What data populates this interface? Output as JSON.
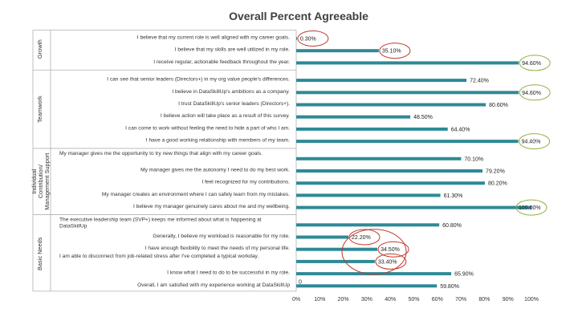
{
  "chart_data": {
    "type": "bar",
    "orientation": "horizontal",
    "title": "Overall Percent Agreeable",
    "xlim": [
      0,
      100
    ],
    "x_ticks": [
      "0%",
      "10%",
      "20%",
      "30%",
      "40%",
      "50%",
      "60%",
      "70%",
      "80%",
      "90%",
      "100%"
    ],
    "bar_color": "#2e8a96",
    "highlight_colors": {
      "low": "#c0392b",
      "high": "#8fb040"
    },
    "grid": false,
    "groups": [
      {
        "name": "Growth",
        "categories": [
          {
            "label": "I believe that my current role is well aligned with my career goals.",
            "value": 0.3,
            "display": "0.30%",
            "highlight": "low"
          },
          {
            "label": "I believe that my skills are well utilized in my role.",
            "value": 35.1,
            "display": "35.10%",
            "highlight": "low"
          },
          {
            "label": "I receive regular, actionable feedback throughout the year.",
            "value": 94.6,
            "display": "94.60%",
            "highlight": "high"
          }
        ]
      },
      {
        "name": "Teamwork",
        "categories": [
          {
            "label": "I can see that senior leaders (Directors+) in my org value people's differences.",
            "value": 72.4,
            "display": "72.40%"
          },
          {
            "label": "I believe in DataSkillUp's ambitions as a company.",
            "value": 94.6,
            "display": "94.60%",
            "highlight": "high"
          },
          {
            "label": "I trust DataSkillUp's senior leaders (Directors+).",
            "value": 80.6,
            "display": "80.60%"
          },
          {
            "label": "I believe action will take place as a result of this survey.",
            "value": 48.5,
            "display": "48.50%"
          },
          {
            "label": "I can come to work without feeling the need to hide a part of who I am.",
            "value": 64.4,
            "display": "64.40%"
          },
          {
            "label": "I have a good working relationship with members of my team.",
            "value": 94.4,
            "display": "94.40%",
            "highlight": "high"
          }
        ]
      },
      {
        "name": "Individual Contribution/Management Support",
        "categories": [
          {
            "label": "My manager gives me the opportunity to try new things that align with my career goals.",
            "value": 70.1,
            "display": "70.10%"
          },
          {
            "label": "My manager gives me the autonomy I need to do my best work.",
            "value": 79.2,
            "display": "79.20%"
          },
          {
            "label": "I feel recognized for my contributions.",
            "value": 80.2,
            "display": "80.20%"
          },
          {
            "label": "My manager creates an environment where I can safely learn from my mistakes.",
            "value": 61.3,
            "display": "61.30%"
          },
          {
            "label": "I believe my manager genuinely cares about me and my wellbeing.",
            "value": 100,
            "display": "100.00%",
            "highlight": "high"
          }
        ]
      },
      {
        "name": "Basic Needs",
        "categories": [
          {
            "label": "The executive leadership team (SVP+) keeps me informed about what is happening at DataSkillUp",
            "value": 60.8,
            "display": "60.80%"
          },
          {
            "label": "Generally, I believe my workload is reasonable for my role.",
            "value": 22.2,
            "display": "22.20%",
            "highlight": "low"
          },
          {
            "label": "I have enough flexibility to meet the needs of my personal life.",
            "value": 34.5,
            "display": "34.50%",
            "highlight": "low"
          },
          {
            "label": "I am able to disconnect from job-related stress after I've completed a typical workday.",
            "value": 33.4,
            "display": "33.40%",
            "highlight": "low"
          },
          {
            "label": "I know what I need to do to be successful in my role.",
            "value": 65.9,
            "display": "65.90%"
          },
          {
            "label": "Overall, I am satisfied with my experience working at DataSkillUp",
            "value": 59.8,
            "display": "59.80%"
          }
        ]
      }
    ],
    "annotations": [
      {
        "text": "0"
      }
    ]
  }
}
